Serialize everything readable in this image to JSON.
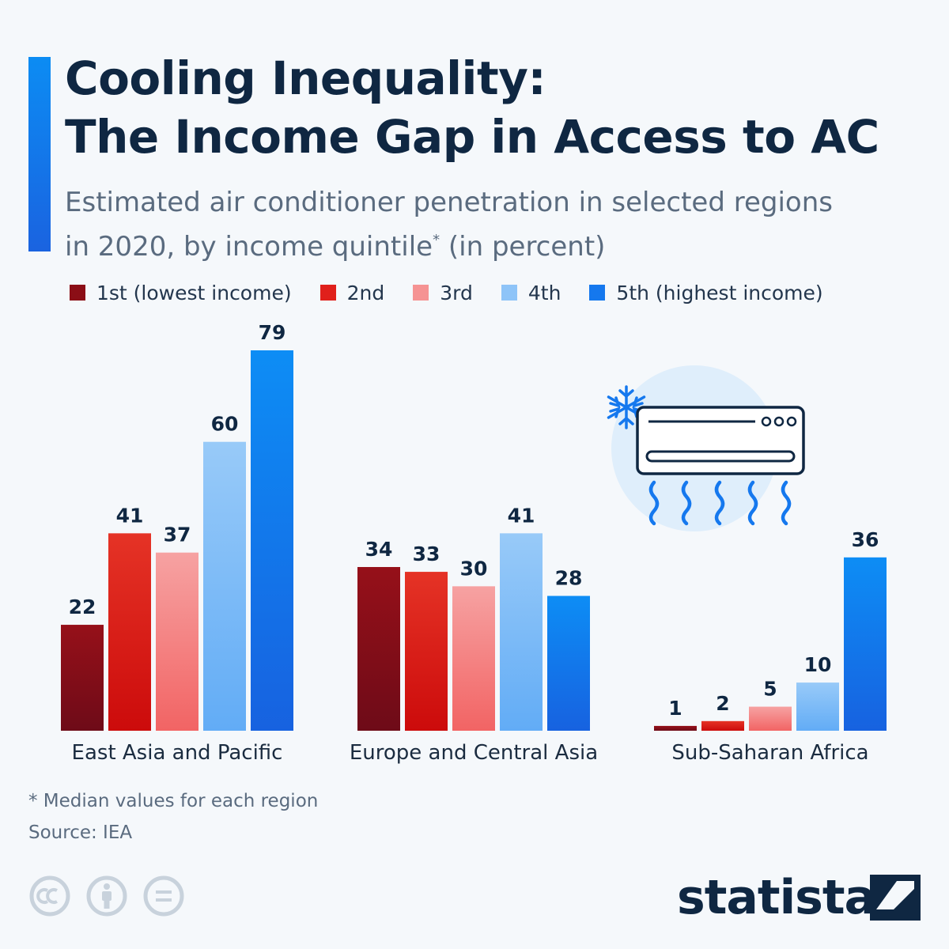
{
  "title_line1": "Cooling Inequality:",
  "title_line2": "The Income Gap in Access to AC",
  "subtitle_line1": "Estimated air conditioner penetration in selected regions",
  "subtitle_line2a": "in 2020, by income quintile",
  "subtitle_mark": "*",
  "subtitle_line2b": " (in percent)",
  "footnote": "* Median values for each region",
  "source": "Source: IEA",
  "brand": "statista",
  "icons": [
    "cc-icon",
    "attribution-icon",
    "no-derivatives-icon",
    "snowflake-icon",
    "air-conditioner-icon",
    "statista-logo-icon"
  ],
  "colors": {
    "accent": "#0c8cf3",
    "title": "#0f2742",
    "q1": "#8b0e16",
    "q2": "#e0201b",
    "q3": "#f59393",
    "q4": "#8ec4f8",
    "q5": "#1578ee"
  },
  "chart_data": {
    "type": "bar",
    "categories": [
      "East Asia and Pacific",
      "Europe and Central Asia",
      "Sub-Saharan Africa"
    ],
    "series": [
      {
        "name": "1st (lowest income)",
        "values": [
          22,
          34,
          1
        ]
      },
      {
        "name": "2nd",
        "values": [
          41,
          33,
          2
        ]
      },
      {
        "name": "3rd",
        "values": [
          37,
          30,
          5
        ]
      },
      {
        "name": "4th",
        "values": [
          60,
          41,
          10
        ]
      },
      {
        "name": "5th (highest income)",
        "values": [
          79,
          28,
          36
        ]
      }
    ],
    "ylim": [
      0,
      79
    ],
    "grid": false,
    "legend": "top"
  }
}
